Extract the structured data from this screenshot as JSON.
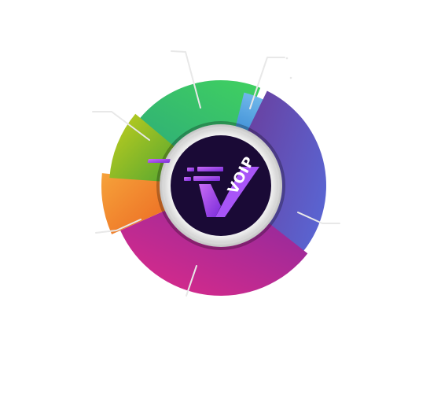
{
  "logo": {
    "text": "VOIP",
    "icon": "voip-v-logo-icon",
    "colors": {
      "disc": "#1a0a36",
      "mark_light": "#c86cf5",
      "mark_dark": "#7a2bd9"
    }
  },
  "segments": [
    {
      "id": "green",
      "colors": [
        "#2fae77",
        "#40d160"
      ]
    },
    {
      "id": "light-blue",
      "colors": [
        "#3f8fd6",
        "#6fb7ea"
      ]
    },
    {
      "id": "blue-purple",
      "colors": [
        "#6a3f9e",
        "#5a63d0"
      ]
    },
    {
      "id": "magenta",
      "colors": [
        "#8e2a9e",
        "#e02a88"
      ]
    },
    {
      "id": "orange",
      "colors": [
        "#f6a23a",
        "#ec6a23"
      ]
    },
    {
      "id": "lime",
      "colors": [
        "#c4cf1e",
        "#55a630"
      ]
    }
  ]
}
